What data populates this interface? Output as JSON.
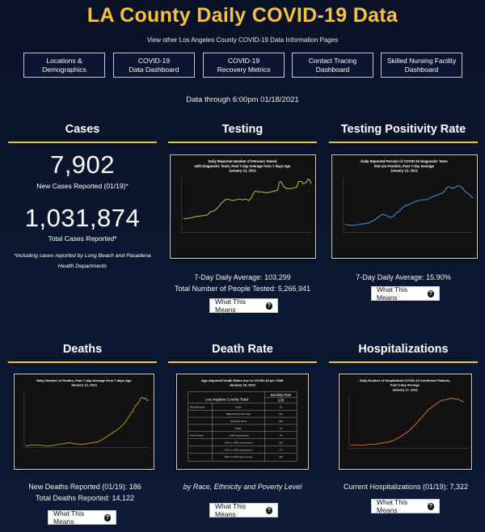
{
  "header": {
    "title": "LA County Daily COVID-19 Data",
    "subtitle": "View other Los Angeles County COVID-19 Data Information Pages",
    "data_through": "Data through 6:00pm 01/18/2021"
  },
  "nav": [
    {
      "label": "Locations &\nDemographics"
    },
    {
      "label": "COVID-19\nData Dashboard"
    },
    {
      "label": "COVID-19\nRecovery Metrics"
    },
    {
      "label": "Contact Tracing\nDashboard"
    },
    {
      "label": "Skilled Nursing Facility\nDashboard"
    }
  ],
  "cases": {
    "heading": "Cases",
    "new_cases": "7,902",
    "new_cases_label": "New Cases Reported (01/19)*",
    "total_cases": "1,031,874",
    "total_cases_label": "Total Cases Reported*",
    "footnote": "*including cases reported by Long Beach and Pasadena Health Departments"
  },
  "testing": {
    "heading": "Testing",
    "chart_title_1": "Daily Reported Number of Persons Tested",
    "chart_title_2": "with Diagnostic Tests, Past 7-day Average from 7 days Ago",
    "chart_title_3": "January 12, 2021",
    "avg": "7-Day Daily Average: 103,299",
    "total": "Total Number of People Tested: 5,266,941",
    "button": "What This Means"
  },
  "positivity": {
    "heading": "Testing Positivity Rate",
    "chart_title_1": "Daily Reported Percent of COVID-19 Diagnostic Tests",
    "chart_title_2": "that are Positive, Past 7-day Average",
    "chart_title_3": "January 12, 2021",
    "avg": "7-Day Daily Average: 15.90%",
    "button": "What This Means"
  },
  "deaths": {
    "heading": "Deaths",
    "chart_title_1": "Daily Number of Deaths, Past 7-day Average from 7 days Ago",
    "chart_title_2": "January 12, 2021",
    "new_deaths": "New Deaths Reported (01/19): 186",
    "total_deaths": "Total Deaths Reported: 14,122",
    "button": "What This Means"
  },
  "death_rate": {
    "heading": "Death Rate",
    "chart_title_1": "Age-Adjusted Death Rates due to COVID-19 per 100K",
    "chart_title_2": "January 18, 2021",
    "table_header_left": "Los Angeles County Total",
    "table_header_right": "Mortality Rate",
    "table_total": "129",
    "rows": [
      {
        "group": "Race/Ethnicity",
        "label": "Asian",
        "value": "91"
      },
      {
        "group": "",
        "label": "Black/African American",
        "value": "134"
      },
      {
        "group": "",
        "label": "Hispanic/Latino",
        "value": "200"
      },
      {
        "group": "",
        "label": "White",
        "value": "72"
      },
      {
        "group": "Area Poverty",
        "label": "<10% area poverty",
        "value": "76"
      },
      {
        "group": "",
        "label": "10% to <20% area poverty",
        "value": "133"
      },
      {
        "group": "",
        "label": "20% to <30% area poverty",
        "value": "177"
      },
      {
        "group": "",
        "label": "30% to 100% area poverty",
        "value": "246"
      }
    ],
    "caption": "by Race, Ethnicity and Poverty Level",
    "button": "What This Means"
  },
  "hospitalizations": {
    "heading": "Hospitalizations",
    "chart_title_1": "Daily Number of Hospitalized COVID-19 Confirmed Patients,",
    "chart_title_2": "Past 3-day Average",
    "chart_title_3": "January 17, 2021",
    "current": "Current Hospitalizations (01/19): 7,322",
    "button": "What This Means"
  },
  "colors": {
    "accent": "#f6c143",
    "testing_line": "#a9b446",
    "positivity_line": "#3a8fd6",
    "deaths_line": "#a38a2c",
    "hosp_line": "#c4682c"
  },
  "icons": {
    "help": "question-circle-icon"
  }
}
